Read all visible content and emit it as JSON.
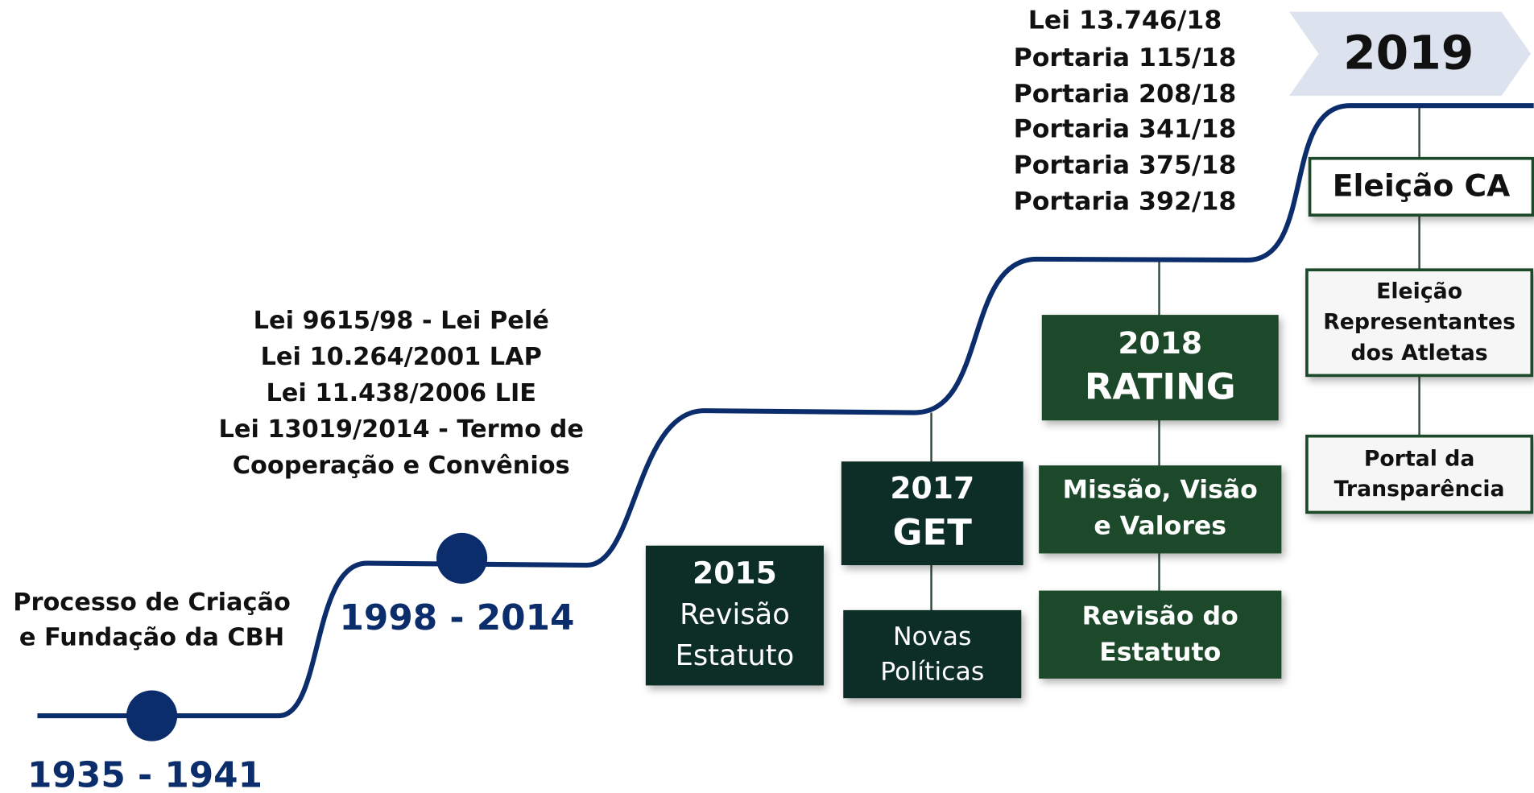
{
  "periods": [
    {
      "label": "1935 - 1941",
      "description": [
        "Processo de Criação",
        "e Fundação da CBH"
      ]
    },
    {
      "label": "1998 - 2014",
      "description": [
        "Lei 9615/98 - Lei Pelé",
        "Lei 10.264/2001 LAP",
        "Lei 11.438/2006 LIE",
        "Lei 13019/2014 - Termo de",
        "Cooperação e Convênios"
      ]
    }
  ],
  "legislation_2018": [
    "Lei 13.746/18",
    "Portaria 115/18",
    "Portaria 208/18",
    "Portaria 341/18",
    "Portaria 375/18",
    "Portaria 392/18"
  ],
  "year_2019": "2019",
  "boxes": [
    {
      "lines": [
        "2015",
        "Revisão",
        "Estatuto"
      ]
    },
    {
      "lines": [
        "2017",
        "GET"
      ]
    },
    {
      "lines": [
        "Novas",
        "Políticas"
      ]
    },
    {
      "lines": [
        "2018",
        "RATING"
      ]
    },
    {
      "lines": [
        "Missão, Visão",
        "e Valores"
      ]
    },
    {
      "lines": [
        "Revisão do",
        "Estatuto"
      ]
    },
    {
      "lines": [
        "Eleição CA"
      ]
    },
    {
      "lines": [
        "Eleição",
        "Representantes",
        "dos Atletas"
      ]
    },
    {
      "lines": [
        "Portal da",
        "Transparência"
      ]
    }
  ]
}
